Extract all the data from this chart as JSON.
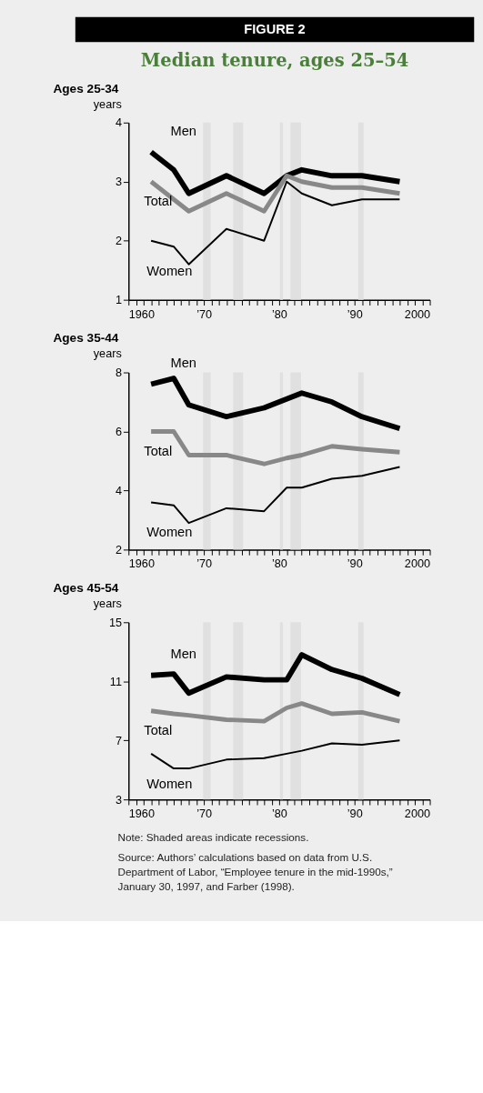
{
  "chart_data": [
    {
      "type": "line",
      "title": "Median tenure, ages 25–54",
      "subtitle": "Ages 25-34",
      "ylabel": "years",
      "annotations": [
        "FIGURE 2"
      ],
      "x": [
        1963,
        1966,
        1968,
        1973,
        1978,
        1981,
        1983,
        1987,
        1991,
        1996
      ],
      "xlim": [
        1960,
        2000
      ],
      "xticks": [
        1960,
        {
          "value": 1961,
          "label": null
        },
        {
          "value": 1962,
          "label": null
        },
        {
          "value": 1963,
          "label": null
        },
        {
          "value": 1964,
          "label": null
        },
        {
          "value": 1965,
          "label": null
        },
        {
          "value": 1966,
          "label": null
        },
        {
          "value": 1967,
          "label": null
        },
        {
          "value": 1968,
          "label": null
        },
        {
          "value": 1969,
          "label": null
        },
        {
          "value": 1970,
          "label": "’70"
        },
        {
          "value": 1971,
          "label": null
        },
        {
          "value": 1972,
          "label": null
        },
        {
          "value": 1973,
          "label": null
        },
        {
          "value": 1974,
          "label": null
        },
        {
          "value": 1975,
          "label": null
        },
        {
          "value": 1976,
          "label": null
        },
        {
          "value": 1977,
          "label": null
        },
        {
          "value": 1978,
          "label": null
        },
        {
          "value": 1979,
          "label": null
        },
        {
          "value": 1980,
          "label": "’80"
        },
        {
          "value": 1981,
          "label": null
        },
        {
          "value": 1982,
          "label": null
        },
        {
          "value": 1983,
          "label": null
        },
        {
          "value": 1984,
          "label": null
        },
        {
          "value": 1985,
          "label": null
        },
        {
          "value": 1986,
          "label": null
        },
        {
          "value": 1987,
          "label": null
        },
        {
          "value": 1988,
          "label": null
        },
        {
          "value": 1989,
          "label": null
        },
        {
          "value": 1990,
          "label": "’90"
        },
        {
          "value": 1991,
          "label": null
        },
        {
          "value": 1992,
          "label": null
        },
        {
          "value": 1993,
          "label": null
        },
        {
          "value": 1994,
          "label": null
        },
        {
          "value": 1995,
          "label": null
        },
        {
          "value": 1996,
          "label": null
        },
        {
          "value": 1997,
          "label": null
        },
        {
          "value": 1998,
          "label": null
        },
        {
          "value": 1999,
          "label": null
        },
        2000
      ],
      "ylim": [
        1,
        4
      ],
      "yticks": [
        1,
        2,
        3,
        4
      ],
      "grid": false,
      "bands": [
        {
          "axis": "x",
          "from": 1969.9,
          "to": 1970.9,
          "color": "#e0e0e0"
        },
        {
          "axis": "x",
          "from": 1973.9,
          "to": 1975.2,
          "color": "#e0e0e0"
        },
        {
          "axis": "x",
          "from": 1980.1,
          "to": 1980.5,
          "color": "#e0e0e0"
        },
        {
          "axis": "x",
          "from": 1981.5,
          "to": 1982.9,
          "color": "#e0e0e0"
        },
        {
          "axis": "x",
          "from": 1990.5,
          "to": 1991.2,
          "color": "#e0e0e0"
        }
      ],
      "series": [
        {
          "name": "Men",
          "color": "#000000",
          "values": [
            3.5,
            3.2,
            2.8,
            3.1,
            2.8,
            3.1,
            3.2,
            3.1,
            3.1,
            3.0
          ]
        },
        {
          "name": "Total",
          "color": "#888888",
          "values": [
            3.0,
            2.7,
            2.5,
            2.8,
            2.5,
            3.1,
            3.0,
            2.9,
            2.9,
            2.8
          ]
        },
        {
          "name": "Women",
          "color": "#000000",
          "values": [
            2.0,
            1.9,
            1.6,
            2.2,
            2.0,
            3.0,
            2.8,
            2.6,
            2.7,
            2.7
          ]
        }
      ]
    },
    {
      "type": "line",
      "subtitle": "Ages 35-44",
      "ylabel": "years",
      "x": [
        1963,
        1966,
        1968,
        1973,
        1978,
        1981,
        1983,
        1987,
        1991,
        1996
      ],
      "xlim": [
        1960,
        2000
      ],
      "xticks": [
        1960,
        {
          "value": 1961,
          "label": null
        },
        {
          "value": 1962,
          "label": null
        },
        {
          "value": 1963,
          "label": null
        },
        {
          "value": 1964,
          "label": null
        },
        {
          "value": 1965,
          "label": null
        },
        {
          "value": 1966,
          "label": null
        },
        {
          "value": 1967,
          "label": null
        },
        {
          "value": 1968,
          "label": null
        },
        {
          "value": 1969,
          "label": null
        },
        {
          "value": 1970,
          "label": "’70"
        },
        {
          "value": 1971,
          "label": null
        },
        {
          "value": 1972,
          "label": null
        },
        {
          "value": 1973,
          "label": null
        },
        {
          "value": 1974,
          "label": null
        },
        {
          "value": 1975,
          "label": null
        },
        {
          "value": 1976,
          "label": null
        },
        {
          "value": 1977,
          "label": null
        },
        {
          "value": 1978,
          "label": null
        },
        {
          "value": 1979,
          "label": null
        },
        {
          "value": 1980,
          "label": "’80"
        },
        {
          "value": 1981,
          "label": null
        },
        {
          "value": 1982,
          "label": null
        },
        {
          "value": 1983,
          "label": null
        },
        {
          "value": 1984,
          "label": null
        },
        {
          "value": 1985,
          "label": null
        },
        {
          "value": 1986,
          "label": null
        },
        {
          "value": 1987,
          "label": null
        },
        {
          "value": 1988,
          "label": null
        },
        {
          "value": 1989,
          "label": null
        },
        {
          "value": 1990,
          "label": "’90"
        },
        {
          "value": 1991,
          "label": null
        },
        {
          "value": 1992,
          "label": null
        },
        {
          "value": 1993,
          "label": null
        },
        {
          "value": 1994,
          "label": null
        },
        {
          "value": 1995,
          "label": null
        },
        {
          "value": 1996,
          "label": null
        },
        {
          "value": 1997,
          "label": null
        },
        {
          "value": 1998,
          "label": null
        },
        {
          "value": 1999,
          "label": null
        },
        2000
      ],
      "ylim": [
        2,
        8
      ],
      "yticks": [
        2,
        4,
        6,
        8
      ],
      "grid": false,
      "bands": [
        {
          "axis": "x",
          "from": 1969.9,
          "to": 1970.9,
          "color": "#e0e0e0"
        },
        {
          "axis": "x",
          "from": 1973.9,
          "to": 1975.2,
          "color": "#e0e0e0"
        },
        {
          "axis": "x",
          "from": 1980.1,
          "to": 1980.5,
          "color": "#e0e0e0"
        },
        {
          "axis": "x",
          "from": 1981.5,
          "to": 1982.9,
          "color": "#e0e0e0"
        },
        {
          "axis": "x",
          "from": 1990.5,
          "to": 1991.2,
          "color": "#e0e0e0"
        }
      ],
      "series": [
        {
          "name": "Men",
          "color": "#000000",
          "values": [
            7.6,
            7.8,
            6.9,
            6.5,
            6.8,
            7.1,
            7.3,
            7.0,
            6.5,
            6.1
          ]
        },
        {
          "name": "Total",
          "color": "#888888",
          "values": [
            6.0,
            6.0,
            5.2,
            5.2,
            4.9,
            5.1,
            5.2,
            5.5,
            5.4,
            5.3
          ]
        },
        {
          "name": "Women",
          "color": "#000000",
          "values": [
            3.6,
            3.5,
            2.9,
            3.4,
            3.3,
            4.1,
            4.1,
            4.4,
            4.5,
            4.8
          ]
        }
      ]
    },
    {
      "type": "line",
      "subtitle": "Ages 45-54",
      "ylabel": "years",
      "annotations": [
        "Note: Shaded areas indicate recessions.",
        "Source: Authors’ calculations based on data from U.S. Department of Labor, “Employee tenure in the mid-1990s,” January 30, 1997, and Farber (1998)."
      ],
      "x": [
        1963,
        1966,
        1968,
        1973,
        1978,
        1981,
        1983,
        1987,
        1991,
        1996
      ],
      "xlim": [
        1960,
        2000
      ],
      "xticks": [
        1960,
        {
          "value": 1961,
          "label": null
        },
        {
          "value": 1962,
          "label": null
        },
        {
          "value": 1963,
          "label": null
        },
        {
          "value": 1964,
          "label": null
        },
        {
          "value": 1965,
          "label": null
        },
        {
          "value": 1966,
          "label": null
        },
        {
          "value": 1967,
          "label": null
        },
        {
          "value": 1968,
          "label": null
        },
        {
          "value": 1969,
          "label": null
        },
        {
          "value": 1970,
          "label": "’70"
        },
        {
          "value": 1971,
          "label": null
        },
        {
          "value": 1972,
          "label": null
        },
        {
          "value": 1973,
          "label": null
        },
        {
          "value": 1974,
          "label": null
        },
        {
          "value": 1975,
          "label": null
        },
        {
          "value": 1976,
          "label": null
        },
        {
          "value": 1977,
          "label": null
        },
        {
          "value": 1978,
          "label": null
        },
        {
          "value": 1979,
          "label": null
        },
        {
          "value": 1980,
          "label": "’80"
        },
        {
          "value": 1981,
          "label": null
        },
        {
          "value": 1982,
          "label": null
        },
        {
          "value": 1983,
          "label": null
        },
        {
          "value": 1984,
          "label": null
        },
        {
          "value": 1985,
          "label": null
        },
        {
          "value": 1986,
          "label": null
        },
        {
          "value": 1987,
          "label": null
        },
        {
          "value": 1988,
          "label": null
        },
        {
          "value": 1989,
          "label": null
        },
        {
          "value": 1990,
          "label": "’90"
        },
        {
          "value": 1991,
          "label": null
        },
        {
          "value": 1992,
          "label": null
        },
        {
          "value": 1993,
          "label": null
        },
        {
          "value": 1994,
          "label": null
        },
        {
          "value": 1995,
          "label": null
        },
        {
          "value": 1996,
          "label": null
        },
        {
          "value": 1997,
          "label": null
        },
        {
          "value": 1998,
          "label": null
        },
        {
          "value": 1999,
          "label": null
        },
        2000
      ],
      "ylim": [
        3,
        15
      ],
      "yticks": [
        3,
        7,
        11,
        15
      ],
      "grid": false,
      "bands": [
        {
          "axis": "x",
          "from": 1969.9,
          "to": 1970.9,
          "color": "#e0e0e0"
        },
        {
          "axis": "x",
          "from": 1973.9,
          "to": 1975.2,
          "color": "#e0e0e0"
        },
        {
          "axis": "x",
          "from": 1980.1,
          "to": 1980.5,
          "color": "#e0e0e0"
        },
        {
          "axis": "x",
          "from": 1981.5,
          "to": 1982.9,
          "color": "#e0e0e0"
        },
        {
          "axis": "x",
          "from": 1990.5,
          "to": 1991.2,
          "color": "#e0e0e0"
        }
      ],
      "series": [
        {
          "name": "Men",
          "color": "#000000",
          "values": [
            11.4,
            11.5,
            10.2,
            11.3,
            11.1,
            11.1,
            12.8,
            11.8,
            11.2,
            10.1
          ]
        },
        {
          "name": "Total",
          "color": "#888888",
          "values": [
            9.0,
            8.8,
            8.7,
            8.4,
            8.3,
            9.2,
            9.5,
            8.8,
            8.9,
            8.3
          ]
        },
        {
          "name": "Women",
          "color": "#000000",
          "values": [
            6.1,
            5.1,
            5.1,
            5.7,
            5.8,
            6.1,
            6.3,
            6.8,
            6.7,
            7.0
          ]
        }
      ]
    }
  ]
}
